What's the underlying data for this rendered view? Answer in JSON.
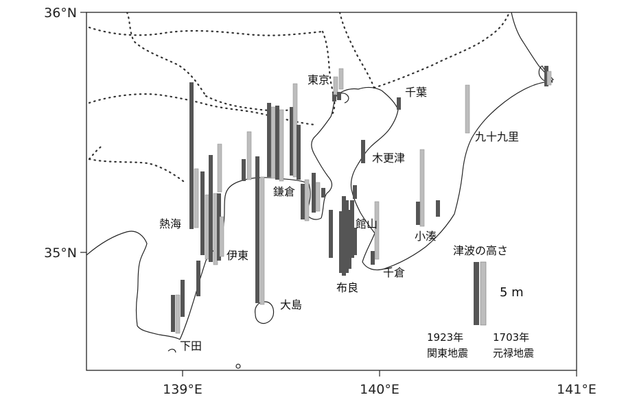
{
  "map": {
    "lat_labels": [
      "36°N",
      "35°N"
    ],
    "lon_labels": [
      "139°E",
      "140°E",
      "141°E"
    ],
    "places": {
      "tokyo": "東京",
      "chiba": "千葉",
      "kujukuri": "九十九里",
      "kisarazu": "木更津",
      "kamakura": "鎌倉",
      "atami": "熱海",
      "tateyama": "館山",
      "ito": "伊東",
      "kominato": "小湊",
      "chikura": "千倉",
      "mera": "布良",
      "oshima": "大島",
      "shimoda": "下田"
    },
    "colors": {
      "bar_1923": "#555555",
      "bar_1703": "#bdbdbd",
      "coast": "#222222",
      "border": "#333333"
    }
  },
  "legend": {
    "title": "津波の高さ",
    "scale_label": "5 m",
    "year_1923": "1923年",
    "event_1923": "関東地震",
    "year_1703": "1703年",
    "event_1703": "元禄地震"
  }
}
